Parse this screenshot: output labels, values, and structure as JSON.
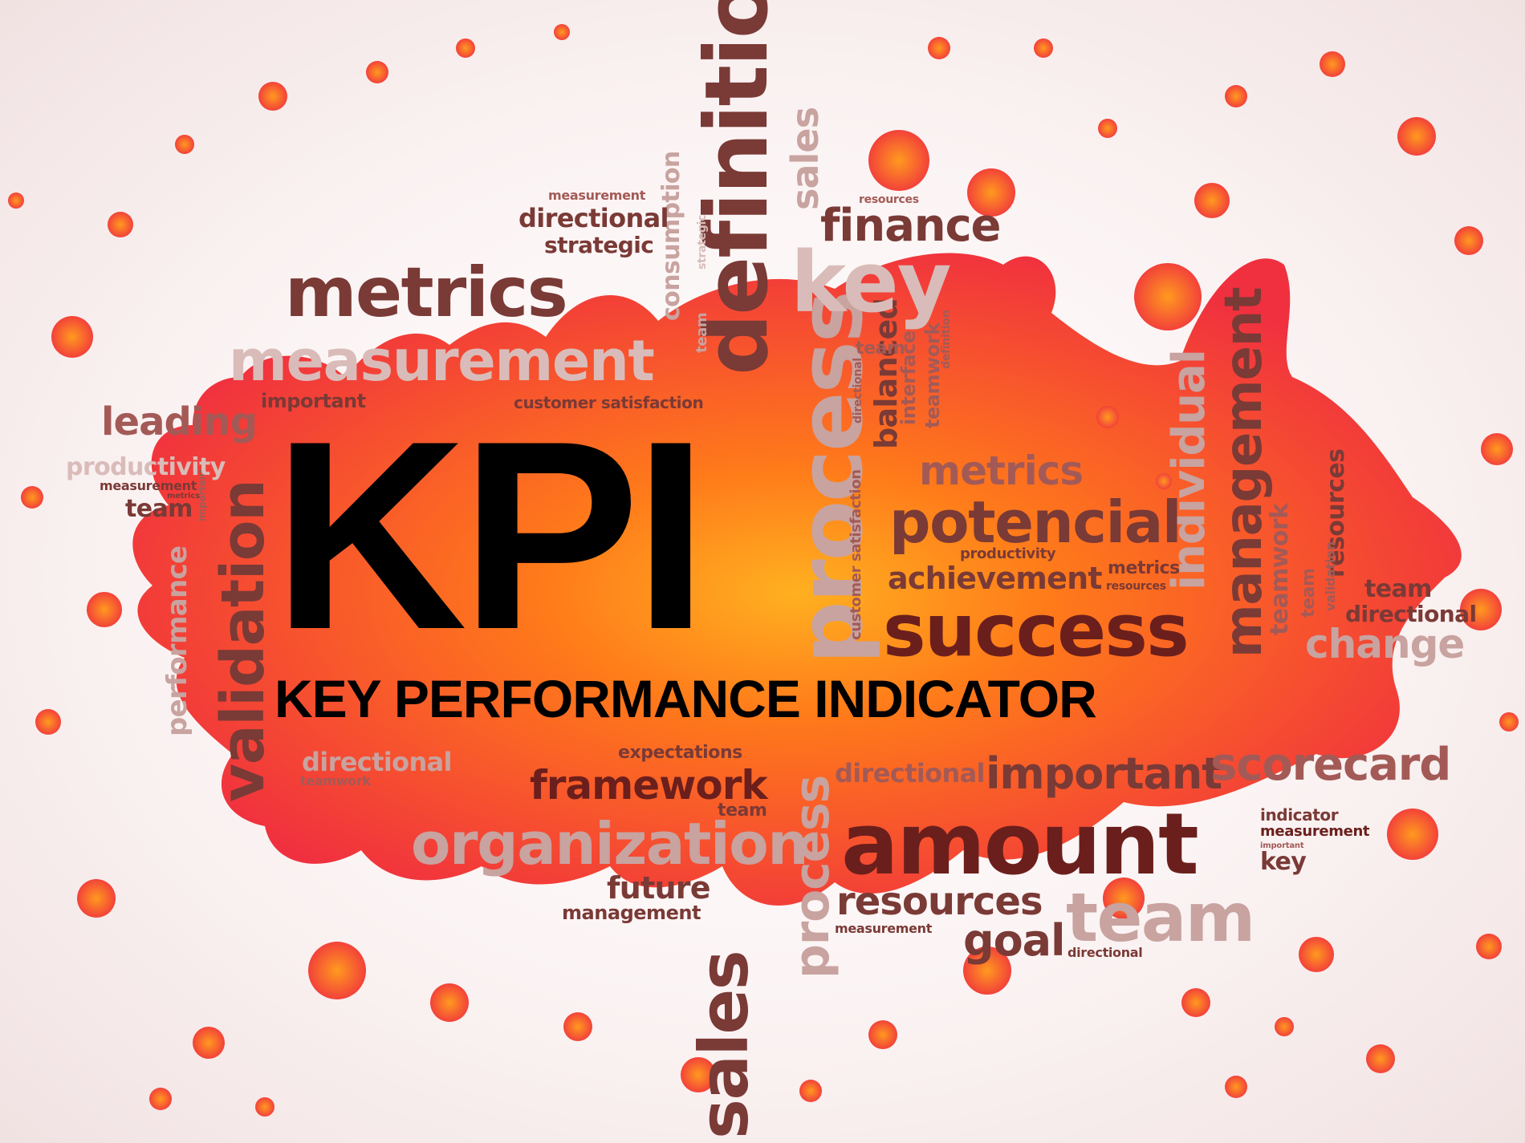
{
  "colors": {
    "splash_red": "#f0303f",
    "splash_orange": "#ff7a1a",
    "splash_yellow": "#ffb020",
    "title": "#000000",
    "word_dark": "#7a3a36",
    "word_light": "#c8a3a0"
  },
  "title": "KPI",
  "subtitle": "KEY PERFORMANCE INDICATOR",
  "words": {
    "definition": "definition",
    "sales_top": "sales",
    "finance": "finance",
    "resources_top": "resources",
    "key_top": "key",
    "measurement_small_top": "measurement",
    "directional_top": "directional",
    "strategic_top": "strategic",
    "strategic_rot": "strategic",
    "consumption": "consumption",
    "team_rot_top": "team",
    "metrics_big": "metrics",
    "measurement_big": "measurement",
    "important_left": "important",
    "customer_satisfaction_top": "customer satisfaction",
    "leading": "leading",
    "productivity_left": "productivity",
    "measurement_left_small": "measurement",
    "metrics_tiny_left": "metrics",
    "team_left": "team",
    "important_tiny_rot": "important",
    "performance_rot": "performance",
    "validation": "validation",
    "process_big": "process",
    "team_mid": "team",
    "directional_rot_mid": "directional",
    "balanced": "balanced",
    "interface": "interface",
    "teamwork_rot": "teamwork",
    "definition_tiny_rot": "definition",
    "customer_satisfaction_rot": "customer satisfaction",
    "metrics_mid": "metrics",
    "potencial": "potencial",
    "productivity_mid": "productivity",
    "achievement": "achievement",
    "metrics_small_right": "metrics",
    "resources_small_right": "resources",
    "success": "success",
    "individual": "individual",
    "management_rot": "management",
    "teamwork_rot_right": "teamwork",
    "resources_rot_right": "resources",
    "team_rot_right": "team",
    "validation_rot_small": "validation",
    "team_right": "team",
    "directional_right": "directional",
    "change": "change",
    "directional_bottom_left": "directional",
    "teamwork_bottom_left": "teamwork",
    "expectations": "expectations",
    "framework": "framework",
    "team_bottom": "team",
    "process_rot_bottom": "process",
    "directional_bottom_mid": "directional",
    "important_bottom": "important",
    "scorecard": "scorecard",
    "organization": "organization",
    "amount": "amount",
    "indicator": "indicator",
    "measurement_right_small": "measurement",
    "important_right_tiny": "important",
    "key_right": "key",
    "future": "future",
    "management_bottom": "management",
    "sales_rot_bottom": "sales",
    "resources_bottom": "resources",
    "measurement_bottom_small": "measurement",
    "team_bottom_big": "team",
    "goal": "goal",
    "directional_bottom_right": "directional"
  }
}
